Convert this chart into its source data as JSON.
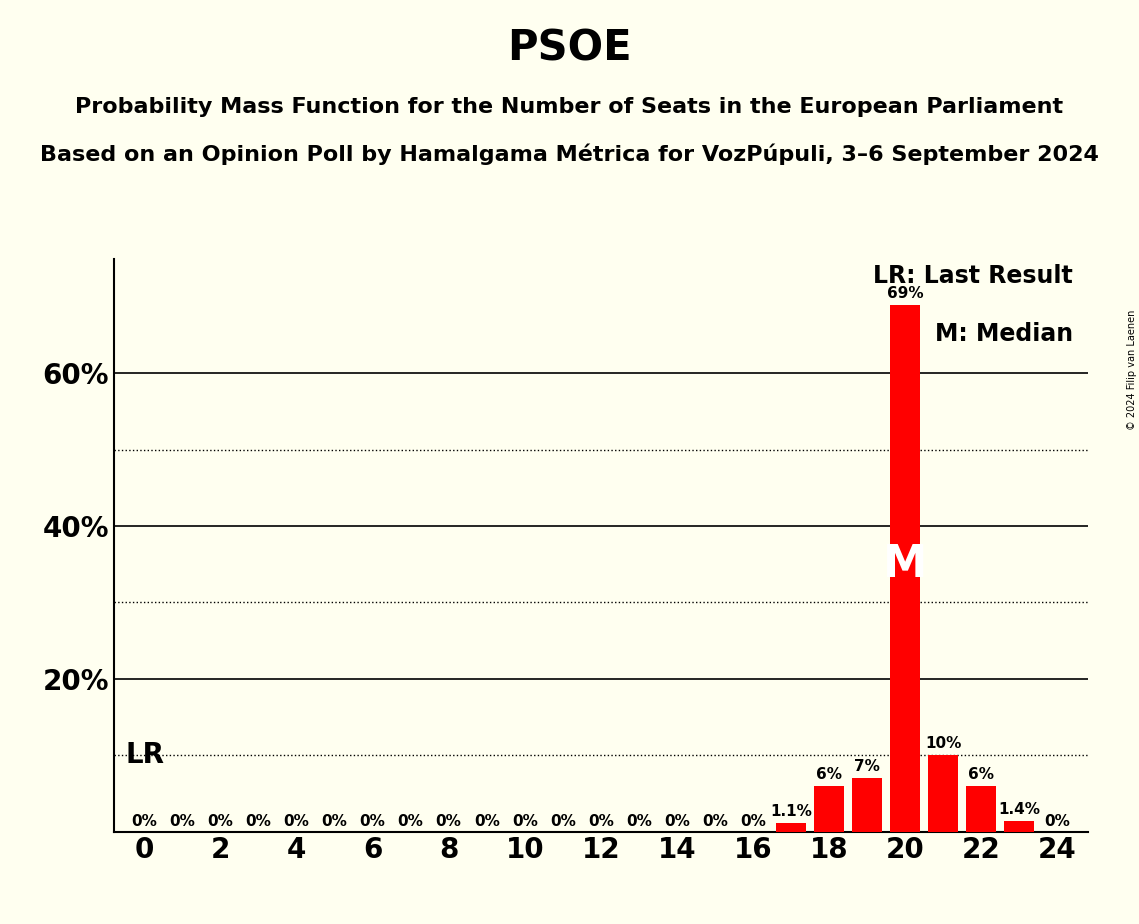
{
  "title": "PSOE",
  "subtitle1": "Probability Mass Function for the Number of Seats in the European Parliament",
  "subtitle2": "Based on an Opinion Poll by Hamalgama Métrica for VozPúpuli, 3–6 September 2024",
  "copyright": "© 2024 Filip van Laenen",
  "background_color": "#fffff0",
  "bar_color": "#ff0000",
  "seats": [
    0,
    1,
    2,
    3,
    4,
    5,
    6,
    7,
    8,
    9,
    10,
    11,
    12,
    13,
    14,
    15,
    16,
    17,
    18,
    19,
    20,
    21,
    22,
    23,
    24
  ],
  "probabilities": [
    0,
    0,
    0,
    0,
    0,
    0,
    0,
    0,
    0,
    0,
    0,
    0,
    0,
    0,
    0,
    0,
    0,
    1.1,
    6,
    7,
    69,
    10,
    6,
    1.4,
    0
  ],
  "median_seat": 20,
  "lr_seat": 20,
  "lr_y": 10,
  "ylim": [
    0,
    75
  ],
  "solid_yticks": [
    20,
    40,
    60
  ],
  "dotted_yticks": [
    10,
    30,
    50
  ],
  "xticks": [
    0,
    2,
    4,
    6,
    8,
    10,
    12,
    14,
    16,
    18,
    20,
    22,
    24
  ],
  "legend_lr_text": "LR: Last Result",
  "legend_m_text": "M: Median",
  "title_fontsize": 30,
  "subtitle_fontsize": 16,
  "axis_fontsize": 20,
  "label_fontsize": 11,
  "legend_fontsize": 17,
  "m_fontsize": 32,
  "lr_fontsize": 20
}
